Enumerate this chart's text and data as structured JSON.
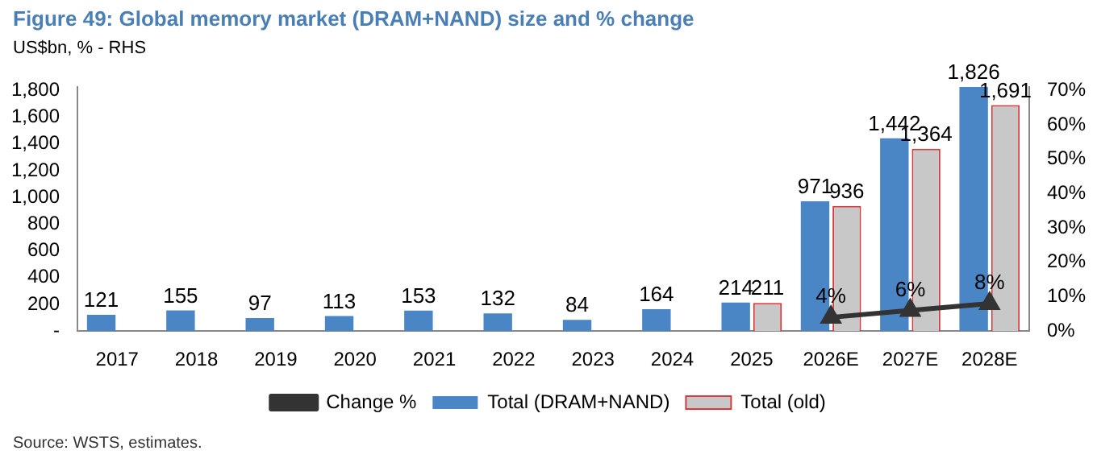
{
  "chart_data": {
    "type": "bar",
    "title": "Figure 49: Global memory market (DRAM+NAND) size and % change",
    "subtitle": "US$bn, % - RHS",
    "categories": [
      "2017",
      "2018",
      "2019",
      "2020",
      "2021",
      "2022",
      "2023",
      "2024",
      "2025",
      "2026E",
      "2027E",
      "2028E"
    ],
    "series": [
      {
        "name": "Total (DRAM+NAND)",
        "color": "#4a86c5",
        "values": [
          121,
          155,
          97,
          113,
          153,
          132,
          84,
          164,
          214,
          971,
          1442,
          1826
        ],
        "value_labels": [
          "121",
          "155",
          "97",
          "113",
          "153",
          "132",
          "84",
          "164",
          "214",
          "971",
          "1,442",
          "1,826"
        ]
      },
      {
        "name": "Total (old)",
        "color": "#c8c8c8",
        "values": [
          null,
          null,
          null,
          null,
          null,
          null,
          null,
          null,
          211,
          936,
          1364,
          1691
        ],
        "value_labels": [
          null,
          null,
          null,
          null,
          null,
          null,
          null,
          null,
          "211",
          "936",
          "1,364",
          "1,691"
        ]
      },
      {
        "name": "Change %",
        "type": "line",
        "axis": "y2",
        "color": "#333333",
        "values": [
          null,
          null,
          null,
          null,
          null,
          null,
          null,
          null,
          null,
          4,
          6,
          8
        ],
        "value_labels": [
          null,
          null,
          null,
          null,
          null,
          null,
          null,
          null,
          null,
          "4%",
          "6%",
          "8%"
        ]
      }
    ],
    "ylim": [
      0,
      1826
    ],
    "yticks": [
      {
        "value": 0,
        "label": "-"
      },
      200,
      400,
      600,
      800,
      {
        "value": 1000,
        "label": "1,000"
      },
      {
        "value": 1200,
        "label": "1,200"
      },
      {
        "value": 1400,
        "label": "1,400"
      },
      {
        "value": 1600,
        "label": "1,600"
      },
      {
        "value": 1800,
        "label": "1,800"
      }
    ],
    "y2lim": [
      0,
      71
    ],
    "y2ticks": [
      {
        "value": 0,
        "label": "0%"
      },
      {
        "value": 10,
        "label": "10%"
      },
      {
        "value": 20,
        "label": "20%"
      },
      {
        "value": 30,
        "label": "30%"
      },
      {
        "value": 40,
        "label": "40%"
      },
      {
        "value": 50,
        "label": "50%"
      },
      {
        "value": 60,
        "label": "60%"
      },
      {
        "value": 70,
        "label": "70%"
      }
    ],
    "legend": "bottom",
    "grid": false,
    "marker": "triangle",
    "annotations": [
      "Source: WSTS, estimates."
    ]
  }
}
